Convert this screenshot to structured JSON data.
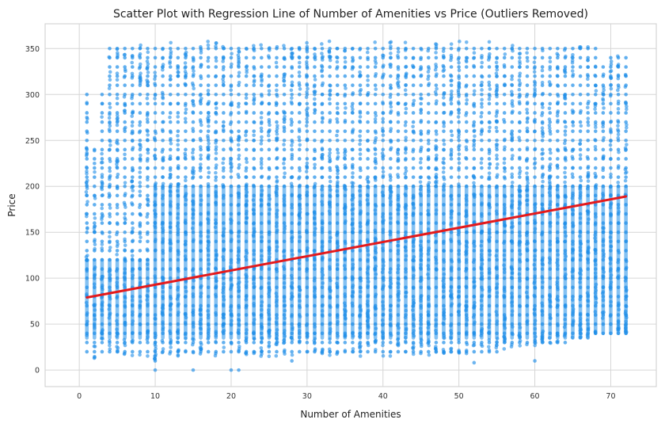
{
  "chart_data": {
    "type": "scatter",
    "title": "Scatter Plot with Regression Line of Number of Amenities vs Price (Outliers Removed)",
    "xlabel": "Number of Amenities",
    "ylabel": "Price",
    "xlim": [
      -4.5,
      76
    ],
    "ylim": [
      -18,
      377
    ],
    "x_ticks": [
      0,
      10,
      20,
      30,
      40,
      50,
      60,
      70
    ],
    "y_ticks": [
      0,
      50,
      100,
      150,
      200,
      250,
      300,
      350
    ],
    "grid": true,
    "legend": "none",
    "colors": {
      "points": "#1f8ee8",
      "regression": "#e41a1c",
      "grid": "#d6d6d6"
    },
    "regression_line": {
      "x": [
        1,
        72
      ],
      "y": [
        79,
        189
      ]
    },
    "point_columns": [
      {
        "x": 1,
        "min": 15,
        "max": 300
      },
      {
        "x": 2,
        "min": 12,
        "max": 240
      },
      {
        "x": 3,
        "min": 15,
        "max": 300
      },
      {
        "x": 4,
        "min": 18,
        "max": 350
      },
      {
        "x": 5,
        "min": 15,
        "max": 352
      },
      {
        "x": 6,
        "min": 15,
        "max": 358
      },
      {
        "x": 7,
        "min": 15,
        "max": 358
      },
      {
        "x": 8,
        "min": 15,
        "max": 358
      },
      {
        "x": 9,
        "min": 15,
        "max": 358
      },
      {
        "x": 10,
        "min": 10,
        "max": 358
      },
      {
        "x": 11,
        "min": 15,
        "max": 358
      },
      {
        "x": 12,
        "min": 15,
        "max": 358
      },
      {
        "x": 13,
        "min": 15,
        "max": 358
      },
      {
        "x": 14,
        "min": 15,
        "max": 358
      },
      {
        "x": 15,
        "min": 15,
        "max": 358
      },
      {
        "x": 16,
        "min": 15,
        "max": 358
      },
      {
        "x": 17,
        "min": 15,
        "max": 358
      },
      {
        "x": 18,
        "min": 15,
        "max": 358
      },
      {
        "x": 19,
        "min": 15,
        "max": 358
      },
      {
        "x": 20,
        "min": 15,
        "max": 358
      },
      {
        "x": 21,
        "min": 15,
        "max": 358
      },
      {
        "x": 22,
        "min": 15,
        "max": 358
      },
      {
        "x": 23,
        "min": 15,
        "max": 358
      },
      {
        "x": 24,
        "min": 15,
        "max": 358
      },
      {
        "x": 25,
        "min": 15,
        "max": 358
      },
      {
        "x": 26,
        "min": 15,
        "max": 358
      },
      {
        "x": 27,
        "min": 15,
        "max": 358
      },
      {
        "x": 28,
        "min": 15,
        "max": 358
      },
      {
        "x": 29,
        "min": 15,
        "max": 358
      },
      {
        "x": 30,
        "min": 15,
        "max": 358
      },
      {
        "x": 31,
        "min": 15,
        "max": 358
      },
      {
        "x": 32,
        "min": 15,
        "max": 358
      },
      {
        "x": 33,
        "min": 15,
        "max": 358
      },
      {
        "x": 34,
        "min": 15,
        "max": 358
      },
      {
        "x": 35,
        "min": 15,
        "max": 358
      },
      {
        "x": 36,
        "min": 15,
        "max": 358
      },
      {
        "x": 37,
        "min": 15,
        "max": 358
      },
      {
        "x": 38,
        "min": 15,
        "max": 358
      },
      {
        "x": 39,
        "min": 15,
        "max": 358
      },
      {
        "x": 40,
        "min": 15,
        "max": 358
      },
      {
        "x": 41,
        "min": 15,
        "max": 358
      },
      {
        "x": 42,
        "min": 15,
        "max": 358
      },
      {
        "x": 43,
        "min": 15,
        "max": 358
      },
      {
        "x": 44,
        "min": 15,
        "max": 358
      },
      {
        "x": 45,
        "min": 15,
        "max": 358
      },
      {
        "x": 46,
        "min": 15,
        "max": 358
      },
      {
        "x": 47,
        "min": 18,
        "max": 358
      },
      {
        "x": 48,
        "min": 18,
        "max": 358
      },
      {
        "x": 49,
        "min": 18,
        "max": 358
      },
      {
        "x": 50,
        "min": 18,
        "max": 358
      },
      {
        "x": 51,
        "min": 18,
        "max": 358
      },
      {
        "x": 52,
        "min": 20,
        "max": 358
      },
      {
        "x": 53,
        "min": 20,
        "max": 358
      },
      {
        "x": 54,
        "min": 20,
        "max": 358
      },
      {
        "x": 55,
        "min": 20,
        "max": 358
      },
      {
        "x": 56,
        "min": 22,
        "max": 358
      },
      {
        "x": 57,
        "min": 22,
        "max": 358
      },
      {
        "x": 58,
        "min": 25,
        "max": 358
      },
      {
        "x": 59,
        "min": 25,
        "max": 352
      },
      {
        "x": 60,
        "min": 25,
        "max": 350
      },
      {
        "x": 61,
        "min": 28,
        "max": 352
      },
      {
        "x": 62,
        "min": 28,
        "max": 350
      },
      {
        "x": 63,
        "min": 30,
        "max": 350
      },
      {
        "x": 64,
        "min": 30,
        "max": 350
      },
      {
        "x": 65,
        "min": 35,
        "max": 350
      },
      {
        "x": 66,
        "min": 35,
        "max": 358
      },
      {
        "x": 67,
        "min": 35,
        "max": 355
      },
      {
        "x": 68,
        "min": 40,
        "max": 350
      },
      {
        "x": 69,
        "min": 40,
        "max": 330
      },
      {
        "x": 70,
        "min": 40,
        "max": 345
      },
      {
        "x": 71,
        "min": 40,
        "max": 345
      },
      {
        "x": 72,
        "min": 40,
        "max": 345
      }
    ],
    "sparse_points": [
      {
        "x": 10,
        "y": 0
      },
      {
        "x": 15,
        "y": 0
      },
      {
        "x": 20,
        "y": 0
      },
      {
        "x": 21,
        "y": 0
      },
      {
        "x": 28,
        "y": 10
      },
      {
        "x": 52,
        "y": 8
      },
      {
        "x": 60,
        "y": 10
      },
      {
        "x": 1,
        "y": 275
      },
      {
        "x": 2,
        "y": 225
      },
      {
        "x": 1,
        "y": 235
      }
    ]
  }
}
